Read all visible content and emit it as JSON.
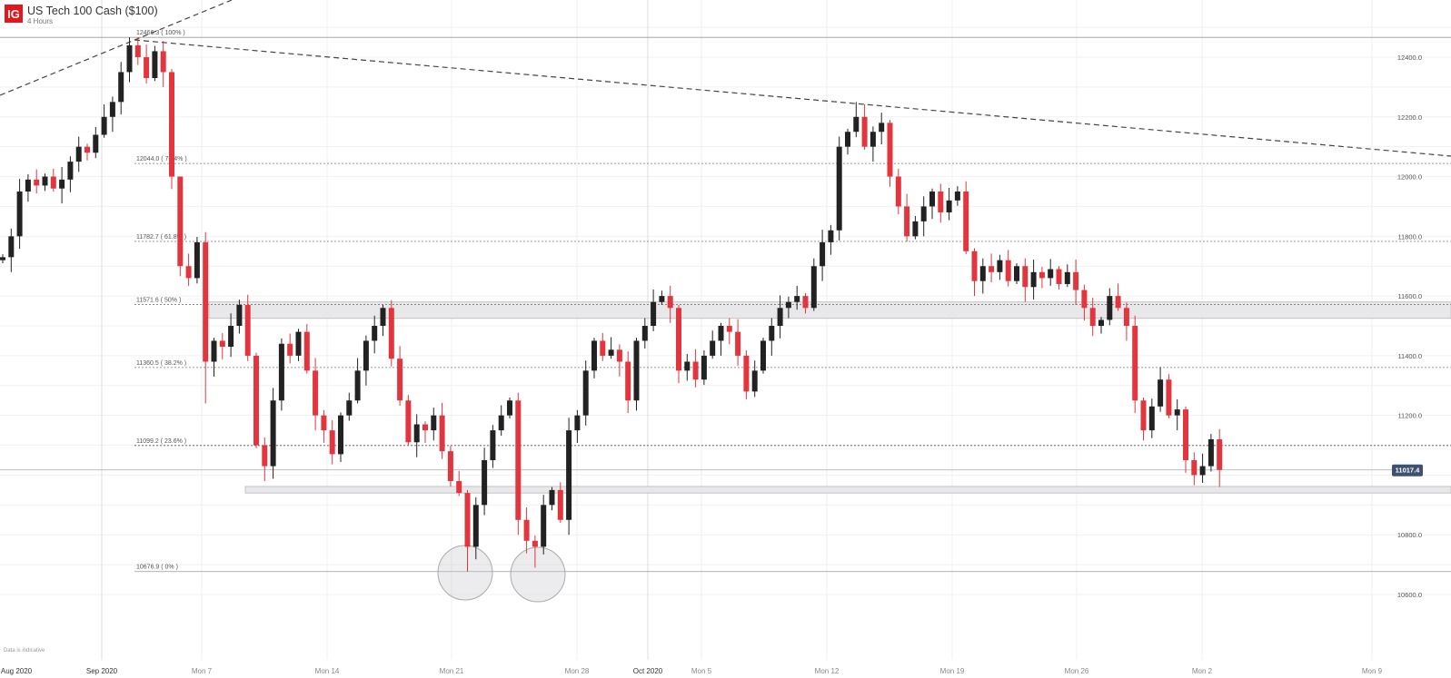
{
  "header": {
    "logo": "IG",
    "title": "US Tech 100 Cash ($100)",
    "interval": "4 Hours"
  },
  "footer_note": "Data is indicative",
  "colors": {
    "up": "#222222",
    "down": "#e3353d",
    "price_badge": "#3e5270",
    "zone": "#e8e8ea"
  },
  "chart_data": {
    "type": "candlestick",
    "title": "US Tech 100 Cash ($100)",
    "ylim": [
      10520,
      12520
    ],
    "y_ticks": [
      "12400.0",
      "12200.0",
      "12000.0",
      "11800.0",
      "11600.0",
      "11400.0",
      "11200.0",
      "10800.0",
      "10600.0"
    ],
    "y_tick_values": [
      12400,
      12200,
      12000,
      11800,
      11600,
      11400,
      11200,
      10800,
      10600
    ],
    "x_ticks": [
      "Aug 2020",
      "Sep 2020",
      "Mon 7",
      "Mon 14",
      "Mon 21",
      "Mon 28",
      "Oct 2020",
      "Mon 5",
      "Mon 12",
      "Mon 19",
      "Mon 26",
      "Mon 2",
      "Mon 9"
    ],
    "close": [
      11730,
      11800,
      11950,
      11990,
      11970,
      12000,
      11960,
      11990,
      12050,
      12100,
      12080,
      12140,
      12200,
      12250,
      12350,
      12440,
      12400,
      12330,
      12420,
      12350,
      12000,
      11700,
      11660,
      11780,
      11380,
      11450,
      11430,
      11500,
      11570,
      11400,
      11100,
      11030,
      11250,
      11440,
      11400,
      11480,
      11350,
      11200,
      11150,
      11070,
      11200,
      11250,
      11350,
      11450,
      11500,
      11560,
      11390,
      11250,
      11110,
      11170,
      11150,
      11200,
      11080,
      10980,
      10940,
      10760,
      10900,
      11050,
      11150,
      11200,
      11250,
      10850,
      10780,
      10760,
      10900,
      10950,
      10850,
      11150,
      11200,
      11350,
      11450,
      11400,
      11420,
      11380,
      11250,
      11450,
      11500,
      11580,
      11600,
      11560,
      11350,
      11380,
      11320,
      11400,
      11450,
      11500,
      11480,
      11400,
      11280,
      11350,
      11450,
      11500,
      11560,
      11580,
      11600,
      11560,
      11700,
      11780,
      11820,
      12100,
      12150,
      12200,
      12100,
      12150,
      12180,
      12000,
      11900,
      11800,
      11850,
      11900,
      11950,
      11880,
      11920,
      11950,
      11750,
      11650,
      11700,
      11680,
      11720,
      11650,
      11700,
      11630,
      11680,
      11660,
      11690,
      11640,
      11680,
      11620,
      11560,
      11500,
      11520,
      11600,
      11560,
      11500,
      11250,
      11150,
      11230,
      11320,
      11200,
      11220,
      11050,
      11000,
      11030,
      11120,
      11017.4
    ],
    "first_open": 11720,
    "wick_overrides": {
      "15": {
        "h": 12466.3
      },
      "21": {
        "h": 11850
      },
      "24": {
        "l": 11240
      },
      "55": {
        "l": 10676.9
      },
      "63": {
        "l": 10690
      },
      "101": {
        "h": 12250
      },
      "144": {
        "l": 10960
      }
    },
    "fibonacci": [
      {
        "label": "12466.3 ( 100% )",
        "value": 12466.3
      },
      {
        "label": "12044.0 ( 76.4% )",
        "value": 12044.0
      },
      {
        "label": "11782.7 ( 61.8% )",
        "value": 11782.7
      },
      {
        "label": "11571.6 ( 50% )",
        "value": 11571.6
      },
      {
        "label": "11360.5 ( 38.2% )",
        "value": 11360.5
      },
      {
        "label": "11099.2 ( 23.6% )",
        "value": 11099.2
      },
      {
        "label": "10676.9 ( 0% )",
        "value": 10676.9
      }
    ],
    "zones": [
      {
        "from": 11525,
        "to": 11580
      },
      {
        "from": 10940,
        "to": 10962
      }
    ],
    "last_price": "11017.4",
    "last_price_value": 11017.4
  }
}
